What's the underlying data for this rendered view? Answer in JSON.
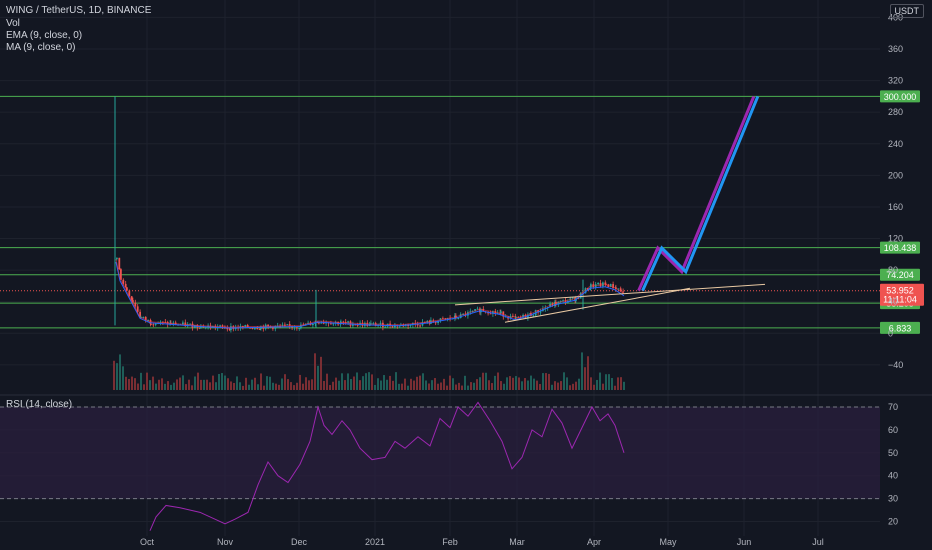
{
  "header": {
    "symbol_line": "WING / TetherUS, 1D, BINANCE",
    "indicators": [
      "Vol",
      "EMA (9, close, 0)",
      "MA (9, close, 0)"
    ],
    "currency": "USDT",
    "rsi_label": "RSI (14, close)"
  },
  "colors": {
    "background": "#131722",
    "level_line": "#4caf50",
    "up_candle": "#26a69a",
    "down_candle": "#ef5350",
    "forecast_blue": "#2196f3",
    "forecast_purple": "#9c27b0",
    "rsi_line": "#9c27b0",
    "rsi_band": "#2a1f3d",
    "trendline": "#e9c9a3"
  },
  "chart_data": [
    {
      "type": "candlestick",
      "ylim": [
        -60,
        410
      ],
      "y_ticks": [
        "400",
        "360",
        "320",
        "280",
        "240",
        "200",
        "160",
        "120",
        "80",
        "40",
        "0",
        "−40"
      ],
      "x_ticks": [
        "Oct",
        "Nov",
        "Dec",
        "2021",
        "Feb",
        "Mar",
        "Apr",
        "May",
        "Jun",
        "Jul"
      ],
      "price_levels": [
        {
          "value": 300.0,
          "label": "300.000"
        },
        {
          "value": 108.438,
          "label": "108.438"
        },
        {
          "value": 74.204,
          "label": "74.204"
        },
        {
          "value": 38.205,
          "label": "38.205"
        },
        {
          "value": 6.833,
          "label": "6.833"
        }
      ],
      "last_price": {
        "value": 53.952,
        "label": "53.952",
        "countdown": "11:11:04"
      },
      "forecast_path": [
        {
          "date": "2021-04-13",
          "value": 54
        },
        {
          "date": "2021-04-21",
          "value": 108
        },
        {
          "date": "2021-05-01",
          "value": 78
        },
        {
          "date": "2021-05-31",
          "value": 300
        }
      ]
    },
    {
      "type": "line",
      "name": "RSI (14, close)",
      "ylim": [
        16,
        74
      ],
      "y_ticks": [
        "70",
        "60",
        "50",
        "40",
        "30",
        "20"
      ],
      "bands": [
        30,
        70
      ]
    }
  ]
}
